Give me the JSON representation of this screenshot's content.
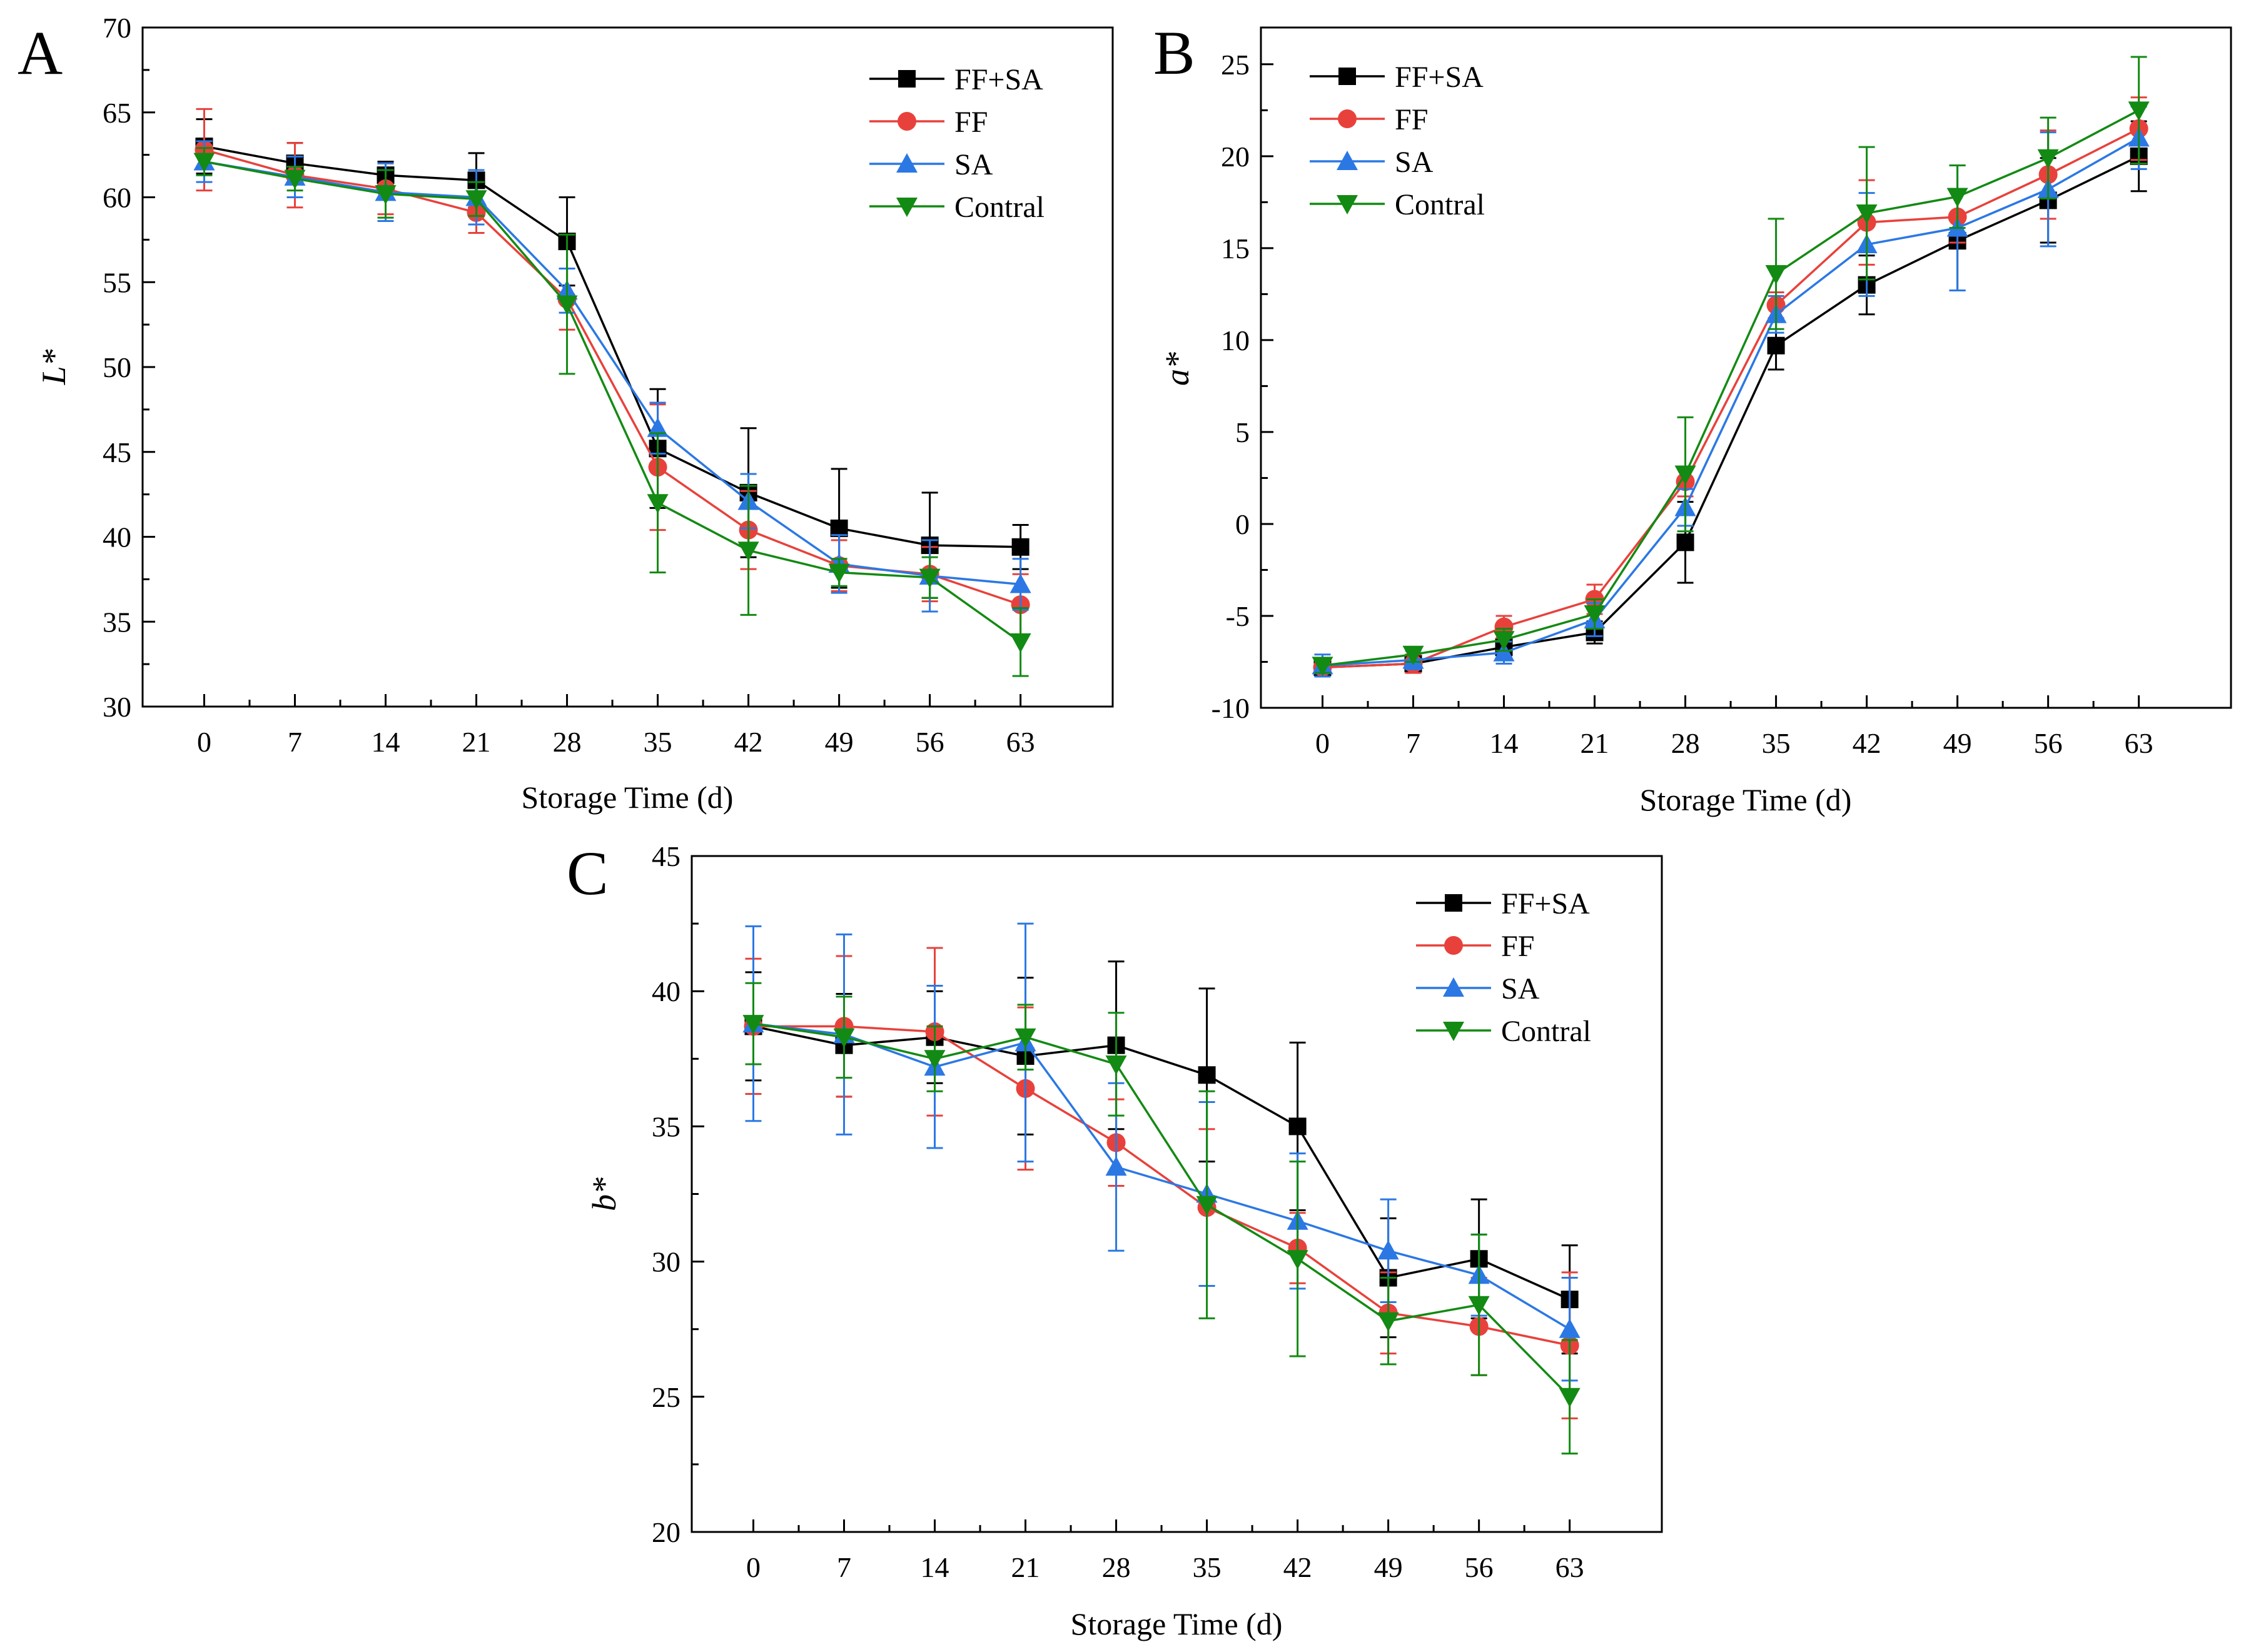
{
  "series_styles": [
    {
      "name": "FF+SA",
      "color": "#000000",
      "marker": "square"
    },
    {
      "name": "FF",
      "color": "#e8413b",
      "marker": "circle"
    },
    {
      "name": "SA",
      "color": "#2b78e4",
      "marker": "triangle-up"
    },
    {
      "name": "Contral",
      "color": "#138a13",
      "marker": "triangle-down"
    }
  ],
  "chart_data": [
    {
      "panel": "A",
      "type": "line",
      "xlabel": "Storage Time (d)",
      "ylabel": "L*",
      "ylim": [
        30,
        70
      ],
      "yticks": [
        30,
        35,
        40,
        45,
        50,
        55,
        60,
        65,
        70
      ],
      "legend_position": "top-right",
      "categories": [
        "0",
        "7",
        "14",
        "21",
        "28",
        "35",
        "42",
        "49",
        "56",
        "63"
      ],
      "series": [
        {
          "name": "FF+SA",
          "values": [
            63.0,
            62.0,
            61.3,
            61.0,
            57.4,
            45.2,
            42.6,
            40.5,
            39.5,
            39.4
          ],
          "errors": [
            1.6,
            1.2,
            0.8,
            1.6,
            2.6,
            3.5,
            3.8,
            3.5,
            3.1,
            1.3
          ]
        },
        {
          "name": "FF",
          "values": [
            62.8,
            61.3,
            60.5,
            59.1,
            54.0,
            44.1,
            40.4,
            38.3,
            37.8,
            36.0
          ],
          "errors": [
            2.4,
            1.9,
            1.5,
            1.2,
            1.8,
            3.7,
            2.3,
            1.5,
            1.6,
            1.8
          ]
        },
        {
          "name": "SA",
          "values": [
            62.1,
            61.2,
            60.3,
            60.0,
            54.5,
            46.4,
            42.1,
            38.4,
            37.7,
            37.2
          ],
          "errors": [
            1.2,
            1.2,
            1.7,
            1.6,
            1.3,
            1.5,
            1.6,
            1.7,
            2.1,
            1.5
          ]
        },
        {
          "name": "Contral",
          "values": [
            62.1,
            61.1,
            60.2,
            59.9,
            53.7,
            42.0,
            39.2,
            37.9,
            37.6,
            33.8
          ],
          "errors": [
            0.8,
            0.7,
            1.4,
            1.0,
            4.1,
            4.1,
            3.8,
            0.8,
            1.2,
            2.0
          ]
        }
      ]
    },
    {
      "panel": "B",
      "type": "line",
      "xlabel": "Storage Time (d)",
      "ylabel": "a*",
      "ylim": [
        -10,
        27
      ],
      "yticks": [
        -10,
        -5,
        0,
        5,
        10,
        15,
        20,
        25
      ],
      "legend_position": "top-left",
      "categories": [
        "0",
        "7",
        "14",
        "21",
        "28",
        "35",
        "42",
        "49",
        "56",
        "63"
      ],
      "series": [
        {
          "name": "FF+SA",
          "values": [
            -7.8,
            -7.6,
            -6.7,
            -5.9,
            -1.0,
            9.7,
            13.0,
            15.4,
            17.6,
            20.0
          ],
          "errors": [
            0.5,
            0.4,
            0.5,
            0.6,
            2.2,
            1.3,
            1.6,
            2.7,
            2.3,
            1.9
          ]
        },
        {
          "name": "FF",
          "values": [
            -7.8,
            -7.6,
            -5.6,
            -4.1,
            2.3,
            11.9,
            16.4,
            16.7,
            19.0,
            21.5
          ],
          "errors": [
            0.5,
            0.5,
            0.6,
            0.8,
            0.8,
            0.7,
            2.3,
            1.4,
            2.4,
            1.7
          ]
        },
        {
          "name": "SA",
          "values": [
            -7.7,
            -7.4,
            -7.0,
            -5.2,
            0.9,
            11.4,
            15.2,
            16.1,
            18.2,
            21.0
          ],
          "errors": [
            0.6,
            0.5,
            0.6,
            0.9,
            1.0,
            1.0,
            2.8,
            3.4,
            3.1,
            1.7
          ]
        },
        {
          "name": "Contral",
          "values": [
            -7.7,
            -7.1,
            -6.3,
            -4.9,
            2.7,
            13.6,
            16.9,
            17.8,
            19.9,
            22.5
          ],
          "errors": [
            0.4,
            0.4,
            0.6,
            0.8,
            3.1,
            3.0,
            3.6,
            1.7,
            2.2,
            2.9
          ]
        }
      ]
    },
    {
      "panel": "C",
      "type": "line",
      "xlabel": "Storage Time (d)",
      "ylabel": "b*",
      "ylim": [
        20,
        45
      ],
      "yticks": [
        20,
        25,
        30,
        35,
        40,
        45
      ],
      "legend_position": "top-right",
      "categories": [
        "0",
        "7",
        "14",
        "21",
        "28",
        "35",
        "42",
        "49",
        "56",
        "63"
      ],
      "series": [
        {
          "name": "FF+SA",
          "values": [
            38.7,
            38.0,
            38.3,
            37.6,
            38.0,
            36.9,
            35.0,
            29.4,
            30.1,
            28.6
          ],
          "errors": [
            2.0,
            1.9,
            1.7,
            2.9,
            3.1,
            3.2,
            3.1,
            2.2,
            2.2,
            2.0
          ]
        },
        {
          "name": "FF",
          "values": [
            38.7,
            38.7,
            38.5,
            36.4,
            34.4,
            32.0,
            30.5,
            28.1,
            27.6,
            26.9
          ],
          "errors": [
            2.5,
            2.6,
            3.1,
            3.0,
            1.6,
            2.9,
            1.3,
            1.5,
            1.8,
            2.7
          ]
        },
        {
          "name": "SA",
          "values": [
            38.8,
            38.4,
            37.2,
            38.1,
            33.5,
            32.5,
            31.5,
            30.4,
            29.5,
            27.5
          ],
          "errors": [
            3.6,
            3.7,
            3.0,
            4.4,
            3.1,
            3.4,
            2.5,
            1.9,
            1.5,
            1.9
          ]
        },
        {
          "name": "Contral",
          "values": [
            38.8,
            38.3,
            37.5,
            38.3,
            37.3,
            32.1,
            30.1,
            27.8,
            28.4,
            25.0
          ],
          "errors": [
            1.5,
            1.5,
            1.2,
            1.2,
            1.9,
            4.2,
            3.6,
            1.6,
            2.6,
            2.1
          ]
        }
      ]
    }
  ]
}
